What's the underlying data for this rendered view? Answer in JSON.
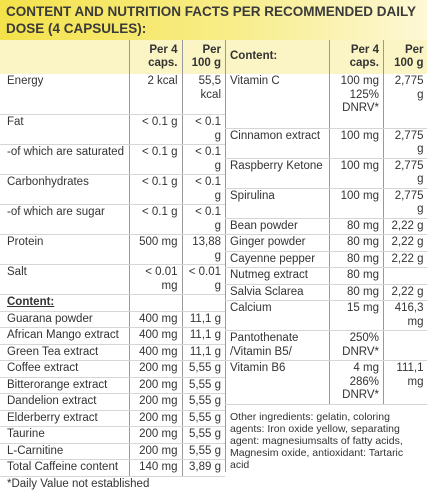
{
  "header": {
    "title": "CONTENT AND NUTRITION FACTS PER RECOMMENDED DAILY DOSE (4 CAPSULES):"
  },
  "left_table": {
    "columns": [
      "Per 4 caps.",
      "Per 100 g"
    ],
    "rows": [
      [
        "Energy",
        "2 kcal",
        "55,5 kcal"
      ],
      [
        "Fat",
        "< 0.1 g",
        "< 0.1 g"
      ],
      [
        "-of which are saturated",
        "< 0.1 g",
        "< 0.1 g"
      ],
      [
        "Carbonhydrates",
        "< 0.1 g",
        "< 0.1 g"
      ],
      [
        "-of which are sugar",
        "< 0.1 g",
        "< 0.1 g"
      ],
      [
        "Protein",
        "500 mg",
        "13,88 g"
      ],
      [
        "Salt",
        "< 0.01 mg",
        "< 0.01 g"
      ]
    ],
    "section_title": "Content:",
    "section_rows": [
      [
        "Guarana powder",
        "400 mg",
        "11,1 g"
      ],
      [
        "African Mango extract",
        "400 mg",
        "11,1 g"
      ],
      [
        "Green Tea extract",
        "400 mg",
        "11,1 g"
      ],
      [
        "Coffee extract",
        "200 mg",
        "5,55 g"
      ],
      [
        "Bitterorange extract",
        "200 mg",
        "5,55 g"
      ],
      [
        "Dandelion extract",
        "200 mg",
        "5,55 g"
      ],
      [
        "Elderberry extract",
        "200 mg",
        "5,55 g"
      ],
      [
        "Taurine",
        "200 mg",
        "5,55 g"
      ],
      [
        "L-Carnitine",
        "200 mg",
        "5,55 g"
      ],
      [
        "Total Caffeine content",
        "140 mg",
        "3,89 g"
      ]
    ],
    "footnote": "*Daily Value not established"
  },
  "right_table": {
    "columns": [
      "Content:",
      "Per 4 caps.",
      "Per 100 g"
    ],
    "rows": [
      [
        "Vitamin C",
        "100 mg 125% DNRV*",
        "2,775 g"
      ],
      [
        "Cinnamon extract",
        "100 mg",
        "2,775 g"
      ],
      [
        "Raspberry Ketone",
        "100 mg",
        "2,775 g"
      ],
      [
        "Spirulina",
        "100 mg",
        "2,775 g"
      ],
      [
        "Bean powder",
        "80 mg",
        "2,22 g"
      ],
      [
        "Ginger powder",
        "80 mg",
        "2,22 g"
      ],
      [
        "Cayenne pepper",
        "80 mg",
        "2,22 g"
      ],
      [
        "Nutmeg extract",
        "80 mg",
        null
      ],
      [
        "Salvia Sclarea",
        "80 mg",
        "2,22 g"
      ],
      [
        "Calcium",
        "15 mg",
        "416,3 mg"
      ],
      [
        "Pantothenate /Vitamin B5/",
        "250% DNRV*",
        null
      ],
      [
        "Vitamin B6",
        "4 mg 286% DNRV*",
        "111,1 mg"
      ]
    ],
    "other_ingredients": "Other ingredients: gelatin, coloring agents: Iron oxide yellow, separating agent: magnesiumsalts of fatty acids, Magnesim oxide, antioxidant: Tartaric acid"
  }
}
